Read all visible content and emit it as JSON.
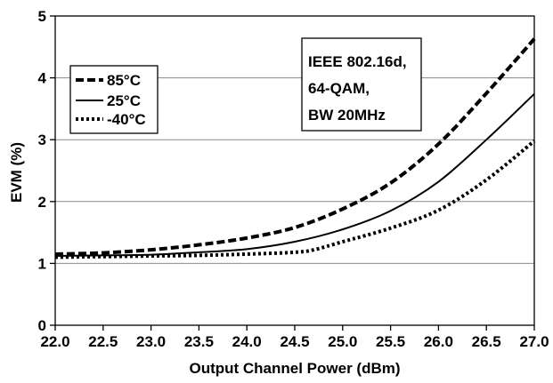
{
  "chart_data": {
    "type": "line",
    "xlabel": "Output Channel Power (dBm)",
    "ylabel": "EVM (%)",
    "xlim": [
      22.0,
      27.0
    ],
    "ylim": [
      0,
      5
    ],
    "x_ticks": [
      "22.0",
      "22.5",
      "23.0",
      "23.5",
      "24.0",
      "24.5",
      "25.0",
      "25.5",
      "26.0",
      "26.5",
      "27.0"
    ],
    "y_ticks": [
      "0",
      "1",
      "2",
      "3",
      "4",
      "5"
    ],
    "grid": "horizontal",
    "legend_position": "upper-left",
    "annotation": [
      "IEEE 802.16d,",
      "64-QAM,",
      "BW 20MHz"
    ],
    "series": [
      {
        "name": "85°C",
        "style": "long-dash",
        "x": [
          22.0,
          22.5,
          23.0,
          23.5,
          24.0,
          24.5,
          25.0,
          25.5,
          26.0,
          26.5,
          27.0
        ],
        "y": [
          1.15,
          1.17,
          1.22,
          1.3,
          1.41,
          1.58,
          1.88,
          2.3,
          2.93,
          3.75,
          4.63
        ]
      },
      {
        "name": "25°C",
        "style": "solid",
        "x": [
          22.0,
          22.5,
          23.0,
          23.5,
          24.0,
          24.5,
          25.0,
          25.5,
          26.0,
          26.5,
          27.0
        ],
        "y": [
          1.12,
          1.13,
          1.14,
          1.18,
          1.23,
          1.35,
          1.55,
          1.85,
          2.32,
          3.0,
          3.74
        ]
      },
      {
        "name": "-40°C",
        "style": "dotted",
        "x": [
          22.0,
          22.5,
          23.0,
          23.5,
          24.0,
          24.5,
          24.7,
          25.0,
          25.5,
          26.0,
          26.5,
          27.0
        ],
        "y": [
          1.1,
          1.11,
          1.12,
          1.13,
          1.15,
          1.18,
          1.22,
          1.35,
          1.57,
          1.86,
          2.35,
          2.98
        ]
      }
    ]
  }
}
